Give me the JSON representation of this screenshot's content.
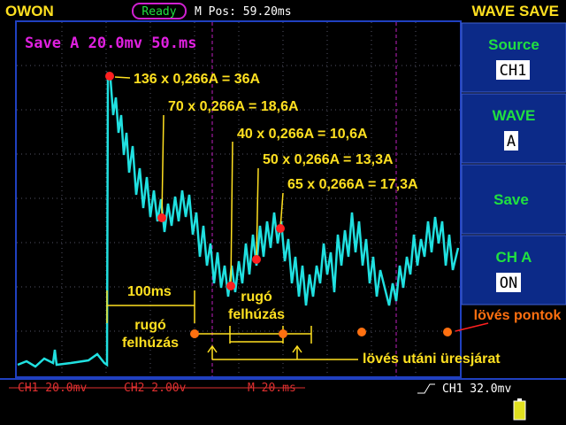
{
  "header": {
    "brand": "OWON",
    "status": "Ready",
    "position": "M Pos: 59.20ms",
    "mode": "WAVE SAVE"
  },
  "screen": {
    "save_label": "Save A 20.0mv 50.ms"
  },
  "annotations": [
    "136 x 0,266A = 36A",
    "70 x 0,266A = 18,6A",
    "40 x 0,266A = 10,6A",
    "50 x 0,266A = 13,3A",
    "65 x 0,266A = 17,3A",
    "100ms",
    "rugó felhúzás",
    "rugó felhúzás",
    "lövés utáni üresjárat",
    "lövés pontok"
  ],
  "menu": [
    {
      "label": "Source",
      "value": "CH1"
    },
    {
      "label": "WAVE",
      "value": "A"
    },
    {
      "label": "Save"
    },
    {
      "label": "CH A",
      "value": "ON"
    }
  ],
  "footer": {
    "ch1": "CH1 20.0mv",
    "ch2": "CH2 2.00v",
    "time": "M 20.ms",
    "trigger": "CH1 32.0mv"
  }
}
